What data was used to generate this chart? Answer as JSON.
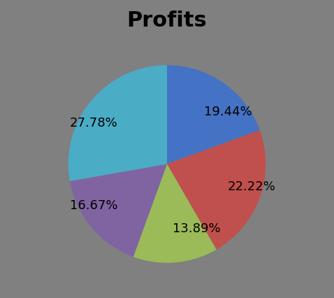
{
  "title": "Profits",
  "title_fontsize": 22,
  "title_fontweight": "bold",
  "slices": [
    19.44,
    22.22,
    13.89,
    16.67,
    27.78
  ],
  "labels": [
    "19.44%",
    "22.22%",
    "13.89%",
    "16.67%",
    "27.78%"
  ],
  "colors": [
    "#4472C4",
    "#C0504D",
    "#9BBB59",
    "#8064A2",
    "#4BACC6"
  ],
  "background_color": "#808080",
  "start_angle": 90,
  "counterclock": false,
  "text_color": "#000000",
  "label_fontsize": 13,
  "labeldistance": 0.65,
  "figsize": [
    4.78,
    4.27
  ],
  "dpi": 100
}
